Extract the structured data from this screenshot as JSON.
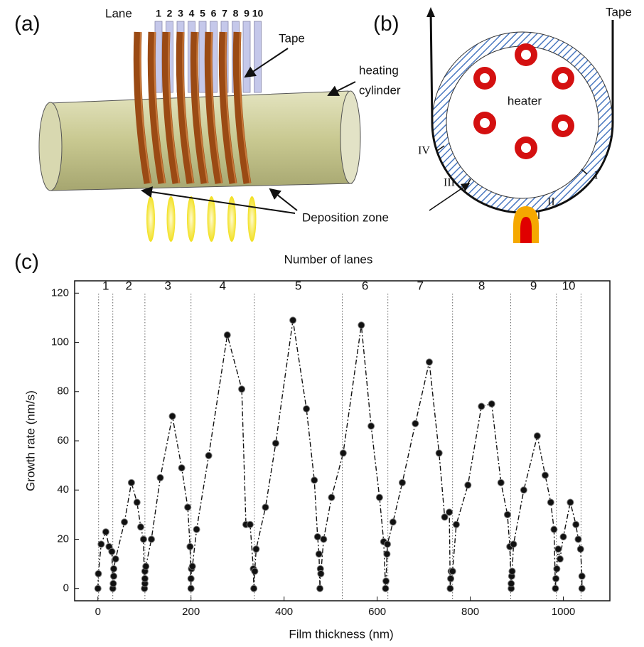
{
  "panel_a": {
    "label": "(a)",
    "lane_title": "Lane",
    "lanes": [
      "1",
      "2",
      "3",
      "4",
      "5",
      "6",
      "7",
      "8",
      "9",
      "10"
    ],
    "tape": "Tape",
    "cylinder": [
      "heating",
      "cylinder"
    ],
    "zone": "Deposition zone"
  },
  "panel_b": {
    "label": "(b)",
    "tape": "Tape",
    "heater": "heater",
    "regions": [
      "IV",
      "III",
      "II",
      "I"
    ]
  },
  "chart_data": {
    "type": "line",
    "label": "(c)",
    "x_label": "Film thickness (nm)",
    "y_label": "Growth rate (nm/s)",
    "top_label": "Number of lanes",
    "lanes": [
      "1",
      "2",
      "3",
      "4",
      "5",
      "6",
      "7",
      "8",
      "9",
      "10"
    ],
    "lane_boundaries": [
      1.5,
      32,
      101,
      200,
      336,
      525,
      623,
      762,
      887,
      985,
      1038
    ],
    "xlim": [
      -50,
      1100
    ],
    "ylim": [
      -5,
      125
    ],
    "xticks": [
      0,
      200,
      400,
      600,
      800,
      1000
    ],
    "yticks": [
      0,
      20,
      40,
      60,
      80,
      100,
      120
    ],
    "color": "#111111",
    "x": [
      0,
      1,
      7,
      17,
      24,
      30,
      32,
      33,
      34,
      34,
      38,
      57,
      72,
      84,
      92,
      98,
      100,
      101,
      101,
      101,
      103,
      115,
      134,
      160,
      180,
      193,
      198,
      200,
      200,
      201,
      203,
      212,
      238,
      278,
      309,
      318,
      327,
      334,
      335,
      337,
      340,
      360,
      382,
      419,
      448,
      465,
      472,
      475,
      477,
      478,
      479,
      485,
      502,
      527,
      566,
      587,
      605,
      614,
      618,
      619,
      621,
      622,
      634,
      654,
      682,
      712,
      733,
      745,
      755,
      757,
      758,
      759,
      762,
      770,
      795,
      824,
      846,
      866,
      880,
      885,
      888,
      888,
      889,
      890,
      893,
      915,
      944,
      961,
      973,
      980,
      983,
      984,
      986,
      989,
      993,
      1000,
      1015,
      1027,
      1032,
      1037,
      1040,
      1040
    ],
    "values": [
      0,
      6,
      18,
      23,
      17,
      15,
      0,
      2,
      5,
      8,
      12,
      27,
      43,
      35,
      25,
      20,
      0,
      2,
      4,
      7,
      9,
      20,
      45,
      70,
      49,
      33,
      17,
      0,
      4,
      8,
      9,
      24,
      54,
      103,
      81,
      26,
      26,
      8,
      0,
      7,
      16,
      33,
      59,
      109,
      73,
      44,
      21,
      14,
      0,
      8,
      6,
      20,
      37,
      55,
      107,
      66,
      37,
      19,
      0,
      3,
      14,
      18,
      27,
      43,
      67,
      92,
      55,
      29,
      31,
      0,
      4,
      7,
      7,
      26,
      42,
      74,
      75,
      43,
      30,
      17,
      0,
      2,
      5,
      7,
      18,
      40,
      62,
      46,
      35,
      24,
      0,
      4,
      8,
      16,
      12,
      21,
      35,
      26,
      20,
      16,
      5,
      0
    ]
  }
}
